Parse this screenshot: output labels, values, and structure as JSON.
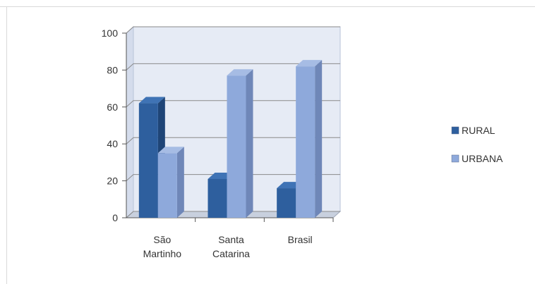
{
  "chart_data": {
    "type": "bar",
    "categories": [
      [
        "São",
        "Martinho"
      ],
      [
        "Santa",
        "Catarina"
      ],
      [
        "Brasil"
      ]
    ],
    "series": [
      {
        "name": "RURAL",
        "values": [
          62,
          21,
          16
        ],
        "color": "#2E5F9E",
        "side_color": "#1F4577",
        "top_color": "#3F73B5"
      },
      {
        "name": "URBANA",
        "values": [
          35,
          77,
          82
        ],
        "color": "#8EA9DB",
        "side_color": "#6F87B8",
        "top_color": "#A6BCE4"
      }
    ],
    "ylim": [
      0,
      100
    ],
    "yticks": [
      0,
      20,
      40,
      60,
      80,
      100
    ],
    "grid": true,
    "legend_position": "right",
    "plot_background": "#E6EBF5"
  }
}
